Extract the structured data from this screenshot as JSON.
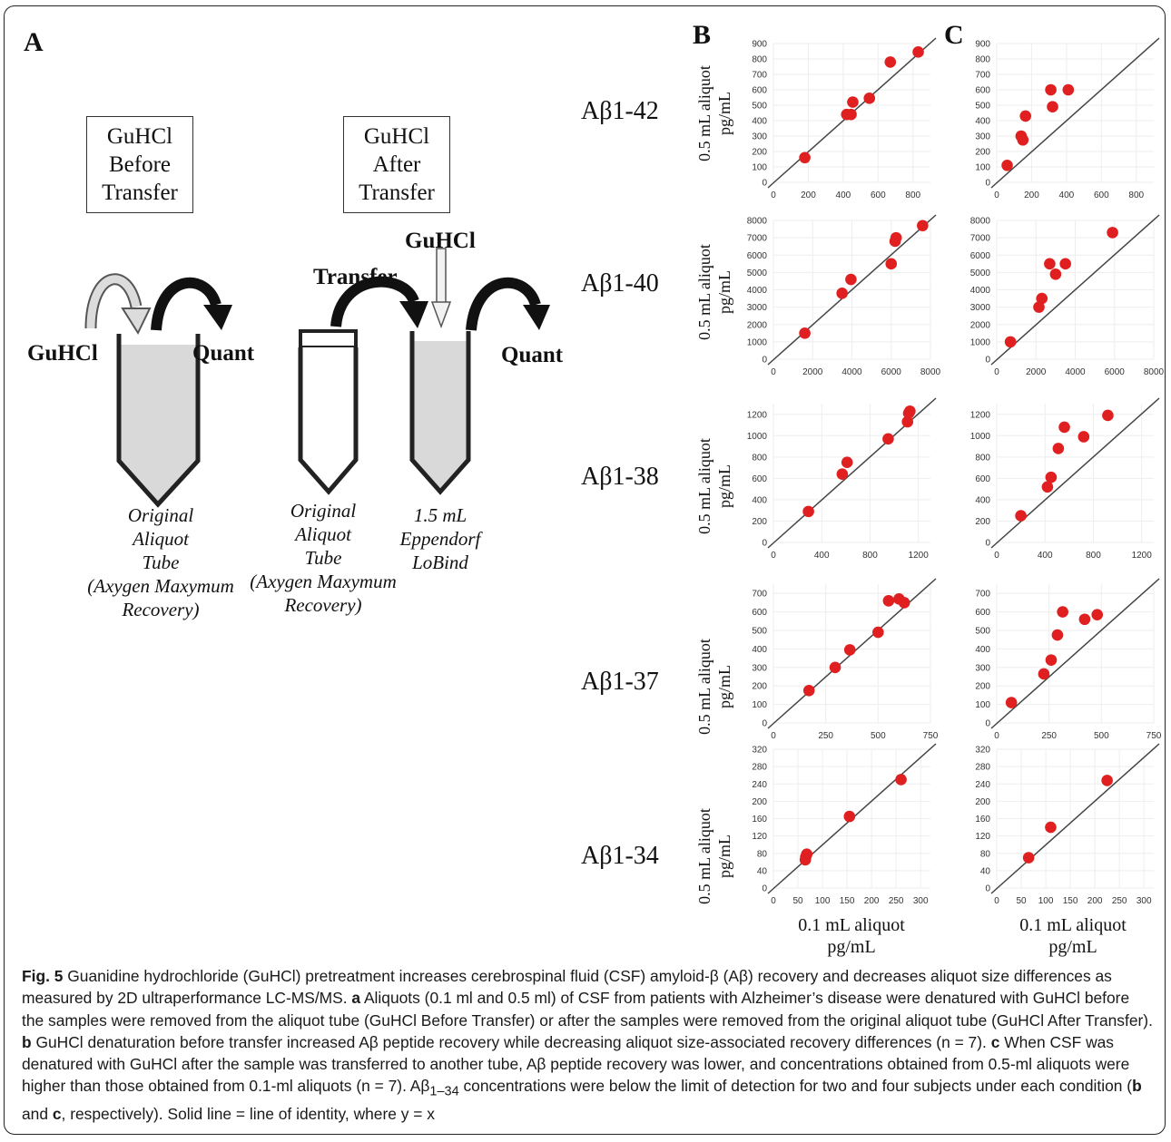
{
  "panel_letters": {
    "a": "A",
    "b": "B",
    "c": "C"
  },
  "diagram": {
    "box_before": [
      "GuHCl",
      "Before",
      "Transfer"
    ],
    "box_after": [
      "GuHCl",
      "After",
      "Transfer"
    ],
    "guhcl_left": "GuHCl",
    "quant_left": "Quant",
    "transfer": "Transfer",
    "guhcl_top": "GuHCl",
    "quant_right": "Quant",
    "tube1_caption": [
      "Original",
      "Aliquot",
      "Tube",
      "(Axygen Maxymum",
      "Recovery)"
    ],
    "tube2_caption": [
      "Original",
      "Aliquot",
      "Tube",
      "(Axygen Maxymum",
      "Recovery)"
    ],
    "tube3_caption": [
      "1.5 mL",
      "Eppendorf",
      "LoBind"
    ]
  },
  "axis_titles": {
    "y": [
      "0.5 mL aliquot",
      "pg/mL"
    ],
    "x": [
      "0.1 mL aliquot",
      "pg/mL"
    ]
  },
  "colors": {
    "point": "#e02020",
    "identity_line": "#444444",
    "grid": "#eeeeee"
  },
  "chart_data": [
    {
      "type": "scatter",
      "panel": "B",
      "row_label": "Aβ1-42",
      "xlim": [
        0,
        900
      ],
      "ylim": [
        0,
        900
      ],
      "xticks": [
        0,
        200,
        400,
        600,
        800
      ],
      "yticks": [
        0,
        100,
        200,
        300,
        400,
        500,
        600,
        700,
        800,
        900
      ],
      "x": [
        180,
        420,
        445,
        455,
        550,
        670,
        830
      ],
      "y": [
        160,
        440,
        440,
        520,
        545,
        780,
        845
      ]
    },
    {
      "type": "scatter",
      "panel": "C",
      "row_label": "Aβ1-42",
      "xlim": [
        0,
        900
      ],
      "ylim": [
        0,
        900
      ],
      "xticks": [
        0,
        200,
        400,
        600,
        800
      ],
      "yticks": [
        0,
        100,
        200,
        300,
        400,
        500,
        600,
        700,
        800,
        900
      ],
      "x": [
        60,
        140,
        150,
        165,
        310,
        320,
        410
      ],
      "y": [
        110,
        300,
        275,
        430,
        600,
        490,
        600
      ]
    },
    {
      "type": "scatter",
      "panel": "B",
      "row_label": "Aβ1-40",
      "xlim": [
        0,
        8000
      ],
      "ylim": [
        0,
        8000
      ],
      "xticks": [
        0,
        2000,
        4000,
        6000,
        8000
      ],
      "yticks": [
        0,
        1000,
        2000,
        3000,
        4000,
        5000,
        6000,
        7000,
        8000
      ],
      "x": [
        1600,
        3500,
        3950,
        6000,
        6200,
        6250,
        7600
      ],
      "y": [
        1500,
        3800,
        4600,
        5500,
        6800,
        7000,
        7700
      ]
    },
    {
      "type": "scatter",
      "panel": "C",
      "row_label": "Aβ1-40",
      "xlim": [
        0,
        8000
      ],
      "ylim": [
        0,
        8000
      ],
      "xticks": [
        0,
        2000,
        4000,
        6000,
        8000
      ],
      "yticks": [
        0,
        1000,
        2000,
        3000,
        4000,
        5000,
        6000,
        7000,
        8000
      ],
      "x": [
        700,
        2150,
        2300,
        2700,
        3000,
        3500,
        5900
      ],
      "y": [
        1000,
        3000,
        3500,
        5500,
        4900,
        5500,
        7300
      ]
    },
    {
      "type": "scatter",
      "panel": "B",
      "row_label": "Aβ1-38",
      "xlim": [
        0,
        1300
      ],
      "ylim": [
        0,
        1300
      ],
      "xticks": [
        0,
        400,
        800,
        1200
      ],
      "yticks": [
        0,
        200,
        400,
        600,
        800,
        1000,
        1200
      ],
      "x": [
        290,
        570,
        610,
        950,
        1110,
        1120,
        1130
      ],
      "y": [
        290,
        640,
        750,
        970,
        1130,
        1210,
        1230
      ]
    },
    {
      "type": "scatter",
      "panel": "C",
      "row_label": "Aβ1-38",
      "xlim": [
        0,
        1300
      ],
      "ylim": [
        0,
        1300
      ],
      "xticks": [
        0,
        400,
        800,
        1200
      ],
      "yticks": [
        0,
        200,
        400,
        600,
        800,
        1000,
        1200
      ],
      "x": [
        200,
        420,
        450,
        510,
        560,
        720,
        920
      ],
      "y": [
        250,
        520,
        610,
        880,
        1080,
        990,
        1190
      ]
    },
    {
      "type": "scatter",
      "panel": "B",
      "row_label": "Aβ1-37",
      "xlim": [
        0,
        750
      ],
      "ylim": [
        0,
        750
      ],
      "xticks": [
        0,
        250,
        500,
        750
      ],
      "yticks": [
        0,
        100,
        200,
        300,
        400,
        500,
        600,
        700
      ],
      "x": [
        170,
        295,
        365,
        500,
        550,
        600,
        625
      ],
      "y": [
        175,
        300,
        395,
        490,
        660,
        670,
        650
      ]
    },
    {
      "type": "scatter",
      "panel": "C",
      "row_label": "Aβ1-37",
      "xlim": [
        0,
        750
      ],
      "ylim": [
        0,
        750
      ],
      "xticks": [
        0,
        250,
        500,
        750
      ],
      "yticks": [
        0,
        100,
        200,
        300,
        400,
        500,
        600,
        700
      ],
      "x": [
        70,
        225,
        260,
        290,
        315,
        420,
        480
      ],
      "y": [
        110,
        265,
        340,
        475,
        600,
        560,
        585
      ]
    },
    {
      "type": "scatter",
      "panel": "B",
      "row_label": "Aβ1-34",
      "xlim": [
        0,
        320
      ],
      "ylim": [
        0,
        320
      ],
      "xticks": [
        0,
        50,
        100,
        150,
        200,
        250,
        300
      ],
      "yticks": [
        0,
        40,
        80,
        120,
        160,
        200,
        240,
        280,
        320
      ],
      "x": [
        65,
        66,
        68,
        155,
        260
      ],
      "y": [
        65,
        72,
        78,
        165,
        250
      ]
    },
    {
      "type": "scatter",
      "panel": "C",
      "row_label": "Aβ1-34",
      "xlim": [
        0,
        320
      ],
      "ylim": [
        0,
        320
      ],
      "xticks": [
        0,
        50,
        100,
        150,
        200,
        250,
        300
      ],
      "yticks": [
        0,
        40,
        80,
        120,
        160,
        200,
        240,
        280,
        320
      ],
      "x": [
        65,
        110,
        225
      ],
      "y": [
        70,
        140,
        248
      ]
    }
  ],
  "caption": {
    "fig_label": "Fig. 5",
    "intro": " Guanidine hydrochloride (GuHCl) pretreatment increases cerebrospinal fluid (CSF) amyloid-β (Aβ) recovery and decreases aliquot size differences as measured by 2D ultraperformance LC-MS/MS. ",
    "a_label": "a",
    "a_text": " Aliquots (0.1 ml and 0.5 ml) of CSF from patients with Alzheimer’s disease were denatured with GuHCl before the samples were removed from the aliquot tube (GuHCl Before Transfer) or after the samples were removed from the original aliquot tube (GuHCl After Transfer). ",
    "b_label": "b",
    "b_text": " GuHCl denaturation before transfer increased Aβ peptide recovery while decreasing aliquot size-associated recovery differences (n = 7). ",
    "c_label": "c",
    "c_text": " When CSF was denatured with GuHCl after the sample was transferred to another tube, Aβ peptide recovery was lower, and concentrations obtained from 0.5-ml aliquots were higher than those obtained from 0.1-ml aliquots (n = 7). Aβ",
    "subscript": "1–34",
    "tail_1": " concentrations were below the limit of detection for two and four subjects under each condition (",
    "tail_b": "b",
    "tail_and": " and ",
    "tail_c": "c",
    "tail_2": ", respectively). Solid line = line of identity, where y = x"
  }
}
